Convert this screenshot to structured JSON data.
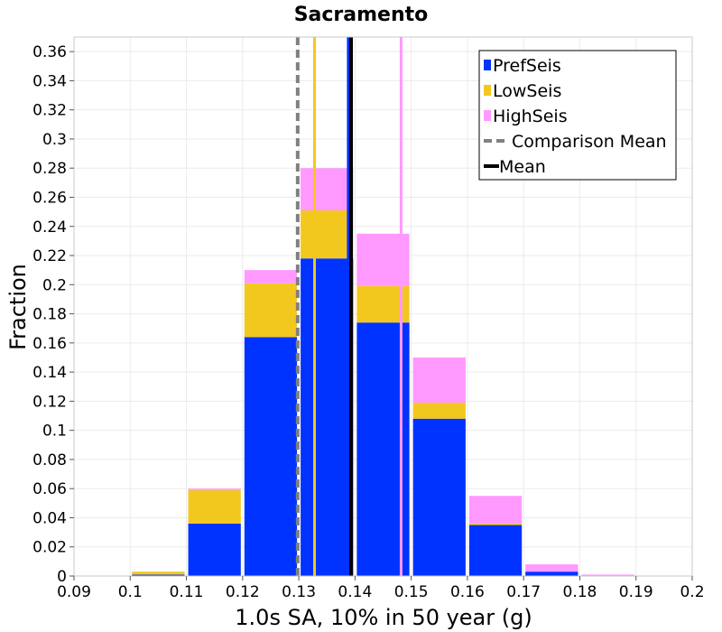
{
  "chart_data": {
    "type": "bar",
    "title": "Sacramento",
    "xlabel": "1.0s SA, 10% in 50 year (g)",
    "ylabel": "Fraction",
    "xlim": [
      0.09,
      0.2
    ],
    "ylim": [
      0,
      0.37
    ],
    "xticks": [
      "0.09",
      "0.1",
      "0.11",
      "0.12",
      "0.13",
      "0.14",
      "0.15",
      "0.16",
      "0.17",
      "0.18",
      "0.19",
      "0.2"
    ],
    "yticks": [
      "0",
      "0.02",
      "0.04",
      "0.06",
      "0.08",
      "0.1",
      "0.12",
      "0.14",
      "0.16",
      "0.18",
      "0.2",
      "0.22",
      "0.24",
      "0.26",
      "0.28",
      "0.3",
      "0.32",
      "0.34",
      "0.36"
    ],
    "grid": true,
    "stacked": true,
    "bin_edges": [
      0.1,
      0.11,
      0.12,
      0.13,
      0.14,
      0.15,
      0.16,
      0.17,
      0.18,
      0.19
    ],
    "series": [
      {
        "name": "PrefSeis",
        "color": "#0033ff",
        "values": [
          0.001,
          0.036,
          0.164,
          0.218,
          0.174,
          0.108,
          0.035,
          0.003,
          0.0
        ]
      },
      {
        "name": "LowSeis",
        "color": "#f2c81f",
        "values": [
          0.002,
          0.023,
          0.037,
          0.033,
          0.025,
          0.011,
          0.001,
          0.0,
          0.0
        ]
      },
      {
        "name": "HighSeis",
        "color": "#ff99ff",
        "values": [
          0.0,
          0.001,
          0.009,
          0.029,
          0.036,
          0.031,
          0.019,
          0.005,
          0.001
        ]
      }
    ],
    "vertical_lines": [
      {
        "name": "LowSeis",
        "x": 0.1328,
        "color": "#f2c81f",
        "style": "solid"
      },
      {
        "name": "HighSeis",
        "x": 0.1482,
        "color": "#ff99ff",
        "style": "solid"
      },
      {
        "name": "PrefSeis",
        "x": 0.1388,
        "color": "#0033ff",
        "style": "solid"
      },
      {
        "name": "Mean",
        "x": 0.1393,
        "color": "#000000",
        "style": "solid"
      },
      {
        "name": "Comparison Mean",
        "x": 0.1298,
        "color": "#808080",
        "style": "dashed"
      }
    ],
    "legend": {
      "position": "top-right",
      "entries": [
        {
          "label": "PrefSeis",
          "color": "#0033ff",
          "symbol": "box"
        },
        {
          "label": "LowSeis",
          "color": "#f2c81f",
          "symbol": "box"
        },
        {
          "label": "HighSeis",
          "color": "#ff99ff",
          "symbol": "box"
        },
        {
          "label": "Comparison Mean",
          "color": "#808080",
          "symbol": "dashed-line"
        },
        {
          "label": "Mean",
          "color": "#000000",
          "symbol": "line"
        }
      ]
    }
  }
}
